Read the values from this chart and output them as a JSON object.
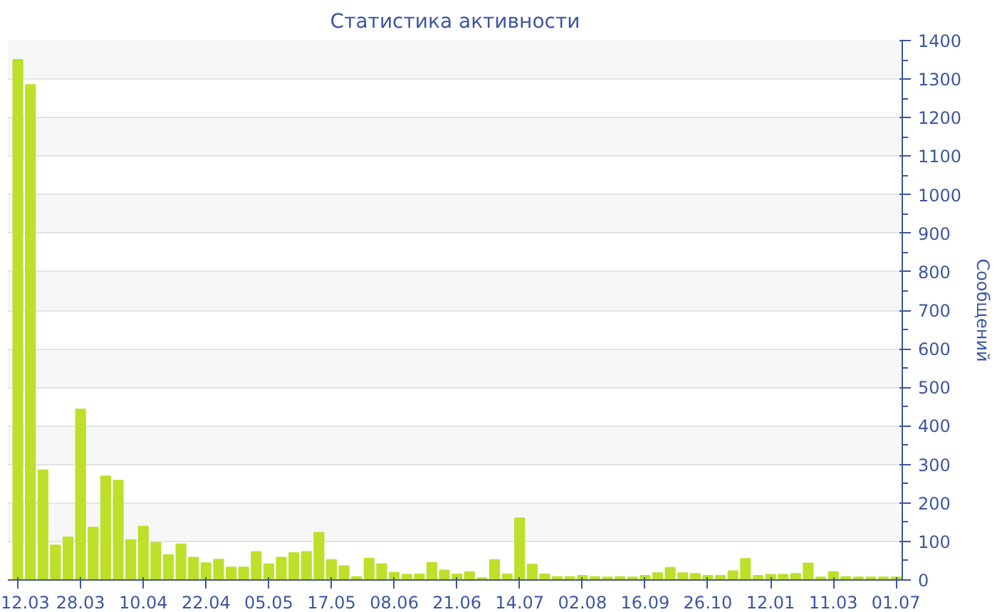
{
  "chart_data": {
    "type": "bar",
    "title": "Статистика активности",
    "ylabel": "Сообщений",
    "categories": [
      "12.03",
      null,
      null,
      null,
      null,
      "28.03",
      null,
      null,
      null,
      null,
      "10.04",
      null,
      null,
      null,
      null,
      "22.04",
      null,
      null,
      null,
      null,
      "05.05",
      null,
      null,
      null,
      null,
      "17.05",
      null,
      null,
      null,
      null,
      "08.06",
      null,
      null,
      null,
      null,
      "21.06",
      null,
      null,
      null,
      null,
      "14.07",
      null,
      null,
      null,
      null,
      "02.08",
      null,
      null,
      null,
      null,
      "16.09",
      null,
      null,
      null,
      null,
      "26.10",
      null,
      null,
      null,
      null,
      "12.01",
      null,
      null,
      null,
      null,
      "11.03",
      null,
      null,
      null,
      null,
      "01.07"
    ],
    "values": [
      1350,
      1285,
      285,
      90,
      111,
      443,
      136,
      269,
      258,
      104,
      139,
      97,
      65,
      93,
      58,
      44,
      53,
      33,
      33,
      73,
      41,
      58,
      70,
      73,
      123,
      52,
      36,
      8,
      56,
      41,
      19,
      14,
      15,
      45,
      25,
      15,
      21,
      5,
      52,
      15,
      160,
      40,
      15,
      8,
      8,
      11,
      8,
      7,
      8,
      7,
      11,
      18,
      32,
      18,
      16,
      11,
      11,
      23,
      55,
      11,
      14,
      14,
      16,
      43,
      7,
      21,
      8,
      7,
      7,
      7,
      7
    ],
    "color": "#bde02b",
    "ylim": [
      0,
      1400
    ],
    "yticks": [
      0,
      100,
      200,
      300,
      400,
      500,
      600,
      700,
      800,
      900,
      1000,
      1100,
      1200,
      1300,
      1400
    ],
    "grid": "y"
  }
}
